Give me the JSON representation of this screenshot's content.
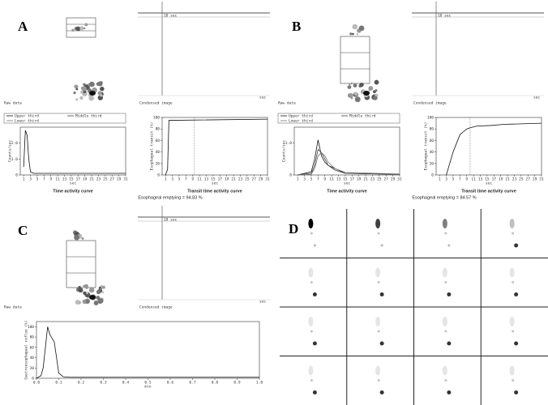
{
  "panels": [
    {
      "letter": "A",
      "raw_label": "Raw data",
      "condensed_label": "Condensed image",
      "time_label": "18 sec",
      "axis_unit": "sec",
      "legend": [
        "Upper third",
        "Middle third",
        "Lower third"
      ],
      "activity": {
        "title": "Time activity curve",
        "ylabel": "Counts/sec",
        "xlabel": "sec",
        "xlim": [
          0,
          31
        ],
        "xticks": [
          1,
          3,
          5,
          7,
          9,
          11,
          13,
          15,
          17,
          19,
          21,
          23,
          25,
          27,
          29,
          31
        ],
        "ylim": [
          0,
          3
        ],
        "yticks": [
          0,
          {
            "value": 1,
            "label": "1.0"
          },
          {
            "value": 2,
            "label": "2.0"
          }
        ],
        "series": [
          {
            "x": [
              1,
              1.5,
              2,
              2.5,
              3,
              4,
              31
            ],
            "values": [
              0.5,
              2.8,
              2.5,
              1.0,
              0.2,
              0.1,
              0.1
            ]
          }
        ]
      },
      "transit": {
        "title": "Transit time activity curve",
        "ylabel": "Esophageal transit (%)",
        "xlabel": "sec",
        "xlim": [
          0,
          31
        ],
        "xticks": [
          1,
          3,
          5,
          7,
          9,
          11,
          13,
          15,
          17,
          19,
          21,
          23,
          25,
          27,
          29,
          31
        ],
        "ylim": [
          0,
          100
        ],
        "yticks": [
          0,
          20,
          40,
          60,
          80,
          100
        ],
        "marker": 9.5,
        "series": [
          {
            "x": [
              1,
              1.6,
              2,
              3,
              31
            ],
            "values": [
              0,
              10,
              95,
              95,
              97
            ]
          }
        ]
      },
      "emptying": "Esophageal emptying = 94.83 %"
    },
    {
      "letter": "B",
      "raw_label": "Raw data",
      "condensed_label": "Condensed image",
      "time_label": "18 sec",
      "axis_unit": "sec",
      "legend": [
        "Upper third",
        "Middle third",
        "Lower third"
      ],
      "activity": {
        "title": "Time activity curve",
        "ylabel": "Counts/sec",
        "xlabel": "sec",
        "xlim": [
          0,
          31
        ],
        "xticks": [
          1,
          3,
          5,
          7,
          9,
          11,
          13,
          15,
          17,
          19,
          21,
          23,
          25,
          27,
          29,
          31
        ],
        "ylim": [
          0,
          1.5
        ],
        "yticks": [
          0,
          {
            "value": 1,
            "label": "1.0"
          }
        ],
        "series": [
          {
            "x": [
              1,
              5,
              6,
              7,
              8,
              9,
              10,
              12,
              15,
              31
            ],
            "values": [
              0,
              0.1,
              0.5,
              1.1,
              0.6,
              0.4,
              0.3,
              0.2,
              0.05,
              0.02
            ]
          },
          {
            "x": [
              1,
              5,
              6,
              7,
              8,
              9,
              10,
              12,
              15,
              31
            ],
            "values": [
              0,
              0.05,
              0.3,
              0.8,
              0.7,
              0.5,
              0.3,
              0.15,
              0.05,
              0.02
            ]
          },
          {
            "x": [
              1,
              5,
              6,
              7,
              8,
              9,
              10,
              12,
              15,
              31
            ],
            "values": [
              0,
              0.02,
              0.2,
              0.6,
              0.7,
              0.6,
              0.4,
              0.2,
              0.08,
              0.03
            ]
          }
        ]
      },
      "transit": {
        "title": "Transit time activity curve",
        "ylabel": "Esophageal transit (%)",
        "xlabel": "sec",
        "xlim": [
          0,
          31
        ],
        "xticks": [
          1,
          3,
          5,
          7,
          9,
          11,
          13,
          15,
          17,
          19,
          21,
          23,
          25,
          27,
          29,
          31
        ],
        "ylim": [
          0,
          100
        ],
        "yticks": [
          0,
          20,
          40,
          60,
          80,
          100
        ],
        "marker": 10,
        "series": [
          {
            "x": [
              3,
              4,
              5,
              6,
              7,
              8,
              9,
              10,
              12,
              16,
              20,
              31
            ],
            "values": [
              0,
              20,
              40,
              55,
              70,
              75,
              80,
              82,
              85,
              86,
              88,
              90
            ]
          }
        ]
      },
      "emptying": "Esophageal emptying = 84.57 %"
    },
    {
      "letter": "C",
      "raw_label": "Raw data",
      "condensed_label": "Condensed image",
      "time_label": "18 sec",
      "axis_unit": "sec",
      "activity": {
        "ylabel": "Gastroesophageal reflux (%)",
        "xlabel": "min",
        "xlim": [
          0,
          1
        ],
        "xticks": [
          {
            "value": 0,
            "label": "0.0"
          },
          0.1,
          0.2,
          0.3,
          0.4,
          0.5,
          0.6,
          0.7,
          0.8,
          0.9,
          {
            "value": 1,
            "label": "1.0"
          }
        ],
        "ylim": [
          0,
          110
        ],
        "yticks": [
          0,
          20,
          40,
          60,
          80,
          100
        ],
        "series": [
          {
            "x": [
              0,
              0.02,
              0.03,
              0.04,
              0.05,
              0.06,
              0.08,
              0.1,
              0.12,
              0.15,
              1
            ],
            "values": [
              0,
              5,
              20,
              60,
              100,
              85,
              70,
              10,
              3,
              2,
              2
            ]
          }
        ]
      }
    },
    {
      "letter": "D"
    }
  ]
}
